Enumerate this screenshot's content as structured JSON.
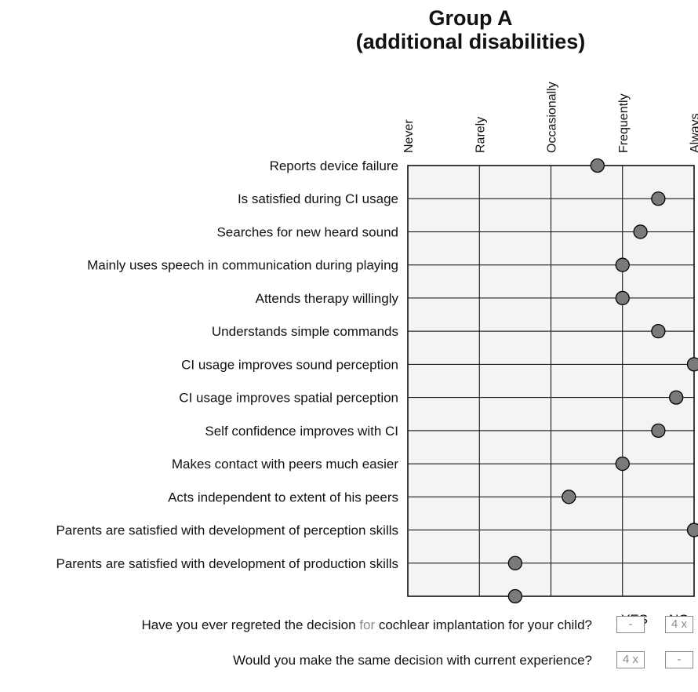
{
  "chart_data": {
    "type": "scatter",
    "title_lines": [
      "Group A",
      "(additional disabilities)"
    ],
    "x_categories": [
      "Never",
      "Rarely",
      "Occasionally",
      "Frequently",
      "Always"
    ],
    "items": [
      {
        "label": "Reports device failure",
        "value": 3.65
      },
      {
        "label": "Is satisfied during CI usage",
        "value": 4.5
      },
      {
        "label": "Searches for new heard sound",
        "value": 4.25
      },
      {
        "label": "Mainly uses speech in communication during playing",
        "value": 4.0
      },
      {
        "label": "Attends therapy willingly ",
        "value": 4.0
      },
      {
        "label": "Understands simple commands",
        "value": 4.5
      },
      {
        "label": "CI usage improves sound perception",
        "value": 5.0
      },
      {
        "label": "CI usage improves spatial perception",
        "value": 4.75
      },
      {
        "label": "Self confidence improves with CI",
        "value": 4.5
      },
      {
        "label": "Makes contact with peers much easier ",
        "value": 4.0
      },
      {
        "label": "Acts independent to extent of his peers",
        "value": 3.25
      },
      {
        "label": "Parents are satisfied with development of perception skills",
        "value": 5.0
      },
      {
        "label": "Parents are satisfied with development of production skills",
        "value": 2.5
      }
    ],
    "xlim": [
      1,
      5
    ],
    "grid": true
  },
  "questions": {
    "yes_header": "YES",
    "no_header": "NO",
    "rows": [
      {
        "pre": "Have you ever regreted the decision ",
        "mid": "for",
        "post": " cochlear implantation for your child?",
        "yes": "-",
        "no": "4 x"
      },
      {
        "pre": "Would you make the same decision with current  experience?",
        "mid": "",
        "post": "",
        "yes": "4 x",
        "no": "-"
      }
    ]
  },
  "colors": {
    "dot_fill": "#7a7a7a",
    "plot_bg": "#f4f4f4",
    "stroke": "#000000",
    "box_text": "#8a8a8a"
  }
}
